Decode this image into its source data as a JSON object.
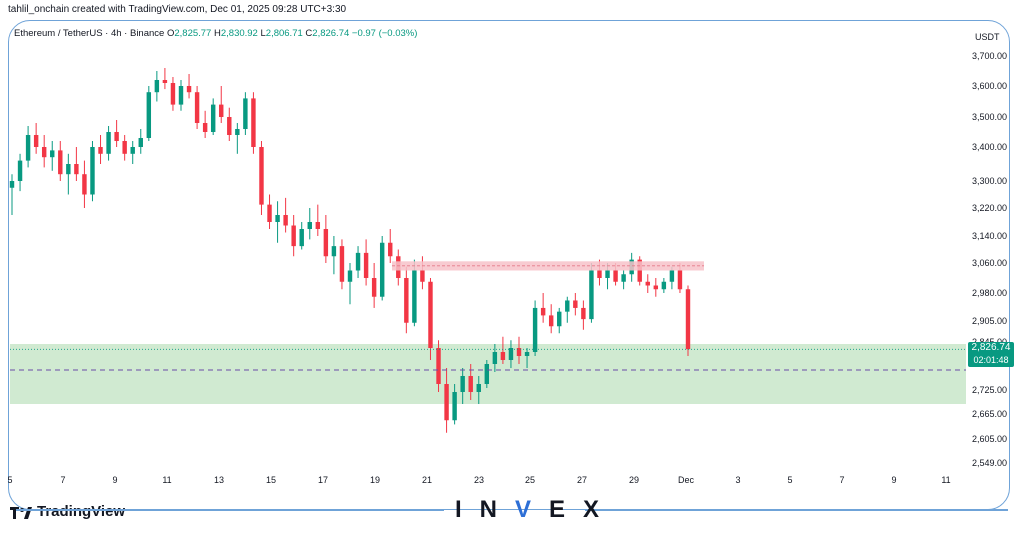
{
  "header": {
    "credit": "tahlil_onchain created with TradingView.com, Dec 01, 2025 09:28 UTC+3:30"
  },
  "legend": {
    "symbol": "Ethereum / TetherUS · 4h · Binance",
    "open_label": "O",
    "open": "2,825.77",
    "high_label": "H",
    "high": "2,830.92",
    "low_label": "L",
    "low": "2,806.71",
    "close_label": "C",
    "close": "2,826.74",
    "change": "−0.97 (−0.03%)"
  },
  "currency": "USDT",
  "price_tag": {
    "price": "2,826.74",
    "countdown": "02:01:48"
  },
  "footer": {
    "logo_text": "TradingView",
    "brand_left": "IN",
    "brand_v": "V",
    "brand_right": "EX"
  },
  "colors": {
    "up": "#089981",
    "down": "#f23645",
    "resistance_zone": "#f7c2c9",
    "support_zone": "#c8e6c9",
    "dashed_line": "#6a4ca8",
    "frame": "#6fa3d8"
  },
  "chart_data": {
    "type": "candlestick",
    "title": "",
    "xlabel": "",
    "ylabel": "",
    "y_ticks": [
      3700,
      3600,
      3500,
      3400,
      3300,
      3220,
      3140,
      3060,
      2980,
      2905,
      2845,
      2725,
      2665,
      2605,
      2549
    ],
    "y_tick_labels": [
      "3,700.00",
      "3,600.00",
      "3,500.00",
      "3,400.00",
      "3,300.00",
      "3,220.00",
      "3,140.00",
      "3,060.00",
      "2,980.00",
      "2,905.00",
      "2,845.00",
      "2,725.00",
      "2,665.00",
      "2,605.00",
      "2,549.00"
    ],
    "x_tick_labels": [
      "5",
      "7",
      "9",
      "11",
      "13",
      "15",
      "17",
      "19",
      "21",
      "23",
      "25",
      "27",
      "29",
      "Dec",
      "3",
      "5",
      "7",
      "9",
      "11"
    ],
    "resistance_zone": [
      3040,
      3065
    ],
    "support_zone": [
      2690,
      2840
    ],
    "dashed_level": 2775,
    "current_price": 2826.74,
    "series": [
      {
        "points": [
          [
            3280,
            3320,
            3200,
            3300
          ],
          [
            3300,
            3380,
            3270,
            3360
          ],
          [
            3360,
            3470,
            3340,
            3440
          ],
          [
            3440,
            3480,
            3380,
            3400
          ],
          [
            3400,
            3440,
            3340,
            3370
          ],
          [
            3370,
            3420,
            3330,
            3390
          ],
          [
            3390,
            3420,
            3300,
            3320
          ],
          [
            3320,
            3380,
            3260,
            3350
          ],
          [
            3350,
            3400,
            3300,
            3320
          ],
          [
            3320,
            3360,
            3220,
            3260
          ],
          [
            3260,
            3420,
            3240,
            3400
          ],
          [
            3400,
            3440,
            3350,
            3380
          ],
          [
            3380,
            3470,
            3360,
            3450
          ],
          [
            3450,
            3490,
            3400,
            3420
          ],
          [
            3420,
            3440,
            3360,
            3380
          ],
          [
            3380,
            3420,
            3350,
            3400
          ],
          [
            3400,
            3460,
            3380,
            3430
          ],
          [
            3430,
            3600,
            3420,
            3580
          ],
          [
            3580,
            3650,
            3550,
            3620
          ],
          [
            3620,
            3660,
            3590,
            3610
          ],
          [
            3610,
            3630,
            3520,
            3540
          ],
          [
            3540,
            3620,
            3520,
            3600
          ],
          [
            3600,
            3640,
            3560,
            3580
          ],
          [
            3580,
            3600,
            3460,
            3480
          ],
          [
            3480,
            3520,
            3430,
            3450
          ],
          [
            3450,
            3560,
            3440,
            3540
          ],
          [
            3540,
            3600,
            3480,
            3500
          ],
          [
            3500,
            3530,
            3420,
            3440
          ],
          [
            3440,
            3480,
            3380,
            3460
          ],
          [
            3460,
            3580,
            3440,
            3560
          ],
          [
            3560,
            3580,
            3380,
            3400
          ],
          [
            3400,
            3420,
            3200,
            3230
          ],
          [
            3230,
            3260,
            3160,
            3180
          ],
          [
            3180,
            3240,
            3120,
            3200
          ],
          [
            3200,
            3250,
            3150,
            3170
          ],
          [
            3170,
            3200,
            3080,
            3110
          ],
          [
            3110,
            3180,
            3100,
            3160
          ],
          [
            3160,
            3220,
            3130,
            3180
          ],
          [
            3180,
            3230,
            3140,
            3160
          ],
          [
            3160,
            3200,
            3060,
            3080
          ],
          [
            3080,
            3140,
            3030,
            3110
          ],
          [
            3110,
            3130,
            2990,
            3010
          ],
          [
            3010,
            3060,
            2950,
            3040
          ],
          [
            3040,
            3110,
            3020,
            3090
          ],
          [
            3090,
            3130,
            3000,
            3020
          ],
          [
            3020,
            3060,
            2940,
            2970
          ],
          [
            2970,
            3140,
            2960,
            3120
          ],
          [
            3120,
            3160,
            3060,
            3080
          ],
          [
            3080,
            3100,
            3000,
            3020
          ],
          [
            3020,
            3050,
            2870,
            2900
          ],
          [
            2900,
            3070,
            2890,
            3040
          ],
          [
            3040,
            3080,
            2990,
            3010
          ],
          [
            3010,
            3020,
            2800,
            2830
          ],
          [
            2830,
            2850,
            2720,
            2740
          ],
          [
            2740,
            2780,
            2620,
            2650
          ],
          [
            2650,
            2740,
            2640,
            2720
          ],
          [
            2720,
            2780,
            2690,
            2760
          ],
          [
            2760,
            2790,
            2700,
            2720
          ],
          [
            2720,
            2760,
            2690,
            2740
          ],
          [
            2740,
            2800,
            2730,
            2790
          ],
          [
            2790,
            2840,
            2770,
            2820
          ],
          [
            2820,
            2860,
            2790,
            2800
          ],
          [
            2800,
            2850,
            2780,
            2830
          ],
          [
            2830,
            2860,
            2790,
            2810
          ],
          [
            2810,
            2830,
            2780,
            2820
          ],
          [
            2820,
            2960,
            2810,
            2940
          ],
          [
            2940,
            2980,
            2900,
            2920
          ],
          [
            2920,
            2950,
            2870,
            2890
          ],
          [
            2890,
            2940,
            2870,
            2930
          ],
          [
            2930,
            2970,
            2900,
            2960
          ],
          [
            2960,
            2980,
            2920,
            2940
          ],
          [
            2940,
            2960,
            2880,
            2910
          ],
          [
            2910,
            3060,
            2900,
            3040
          ],
          [
            3040,
            3070,
            3000,
            3020
          ],
          [
            3020,
            3060,
            2990,
            3040
          ],
          [
            3040,
            3060,
            3000,
            3010
          ],
          [
            3010,
            3040,
            2990,
            3030
          ],
          [
            3030,
            3090,
            3010,
            3070
          ],
          [
            3070,
            3080,
            3000,
            3010
          ],
          [
            3010,
            3030,
            2980,
            3000
          ],
          [
            3000,
            3020,
            2970,
            2990
          ],
          [
            2990,
            3020,
            2980,
            3010
          ],
          [
            3010,
            3050,
            2990,
            3040
          ],
          [
            3040,
            3060,
            2980,
            2990
          ],
          [
            2990,
            3000,
            2810,
            2827
          ]
        ]
      }
    ]
  }
}
